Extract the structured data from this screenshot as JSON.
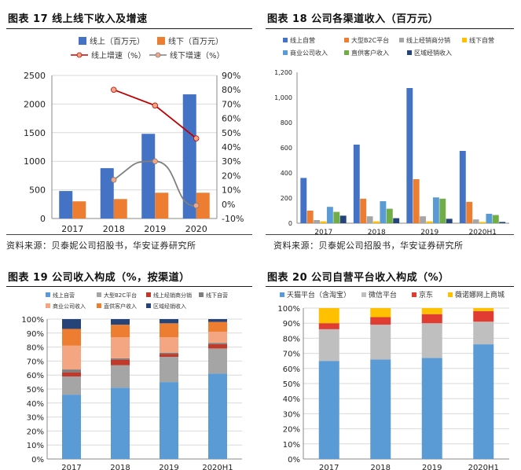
{
  "colors": {
    "blue": "#4472c4",
    "orange": "#ed7d31",
    "grey": "#a5a5a5",
    "yellow": "#ffc000",
    "lightblue": "#5b9bd5",
    "green": "#70ad47",
    "navy": "#264478",
    "red_line": "#c00000",
    "grey_line": "#7f7f7f",
    "pink": "#f4a582",
    "red": "#c0392b"
  },
  "panels": {
    "p17": {
      "title": "图表 17 线上线下收入及增速",
      "source": "资料来源：贝泰妮公司招股书，华安证券研究所"
    },
    "p18": {
      "title": "图表 18  公司各渠道收入（百万元）",
      "source": "资料来源：贝泰妮公司招股书，华安证券研究所"
    },
    "p19": {
      "title": "图表 19 公司收入构成（%，按渠道）"
    },
    "p20": {
      "title": "图表 20 公司自营平台收入构成（%）"
    }
  },
  "chart_data": [
    {
      "id": "c17",
      "type": "bar",
      "categories": [
        "2017",
        "2018",
        "2019",
        "2020"
      ],
      "series": [
        {
          "name": "线上（百万元）",
          "values": [
            480,
            880,
            1480,
            2170
          ],
          "color": "#4472c4"
        },
        {
          "name": "线下（百万元）",
          "values": [
            300,
            340,
            450,
            450
          ],
          "color": "#ed7d31"
        }
      ],
      "line_series": [
        {
          "name": "线上增速（%）",
          "values": [
            null,
            80,
            69,
            46
          ],
          "color": "#c00000"
        },
        {
          "name": "线下增速（%）",
          "values": [
            null,
            17,
            30,
            -1
          ],
          "color": "#7f7f7f"
        }
      ],
      "yticks": [
        "0",
        "500",
        "1000",
        "1500",
        "2000",
        "2500"
      ],
      "y2ticks": [
        "-10%",
        "0%",
        "10%",
        "20%",
        "30%",
        "40%",
        "50%",
        "60%",
        "70%",
        "80%",
        "90%"
      ],
      "ylim": [
        0,
        2500
      ],
      "y2lim": [
        -10,
        90
      ]
    },
    {
      "id": "c18",
      "type": "bar",
      "categories": [
        "2017",
        "2018",
        "2019",
        "2020H1"
      ],
      "series": [
        {
          "name": "线上自营",
          "values": [
            360,
            625,
            1075,
            575
          ],
          "color": "#4472c4"
        },
        {
          "name": "大型B2C平台",
          "values": [
            100,
            195,
            350,
            170
          ],
          "color": "#ed7d31"
        },
        {
          "name": "线上经销商分销",
          "values": [
            25,
            55,
            55,
            30
          ],
          "color": "#a5a5a5"
        },
        {
          "name": "线下自营",
          "values": [
            15,
            15,
            15,
            10
          ],
          "color": "#ffc000"
        },
        {
          "name": "商业公司收入",
          "values": [
            130,
            175,
            205,
            75
          ],
          "color": "#5b9bd5"
        },
        {
          "name": "直供客户收入",
          "values": [
            90,
            115,
            195,
            65
          ],
          "color": "#70ad47"
        },
        {
          "name": "区域经销收入",
          "values": [
            60,
            40,
            35,
            10
          ],
          "color": "#264478"
        }
      ],
      "yticks": [
        "0",
        "200",
        "400",
        "600",
        "800",
        "1,000",
        "1,200"
      ],
      "ylim": [
        0,
        1200
      ]
    },
    {
      "id": "c19",
      "type": "bar",
      "stacked": true,
      "categories": [
        "2017",
        "2018",
        "2019",
        "2020H1"
      ],
      "series": [
        {
          "name": "线上自营",
          "values": [
            46,
            51,
            55,
            61
          ],
          "color": "#5b9bd5"
        },
        {
          "name": "大型B2C平台",
          "values": [
            13,
            16,
            18,
            18
          ],
          "color": "#a5a5a5"
        },
        {
          "name": "线上经销商分销",
          "values": [
            3,
            4,
            2,
            3
          ],
          "color": "#c0392b"
        },
        {
          "name": "线下自营",
          "values": [
            2,
            1,
            1,
            1
          ],
          "color": "#7f7f7f"
        },
        {
          "name": "商业公司收入",
          "values": [
            17,
            15,
            11,
            8
          ],
          "color": "#f4a582"
        },
        {
          "name": "直供客户收入",
          "values": [
            12,
            9,
            10,
            7
          ],
          "color": "#ed7d31"
        },
        {
          "name": "区域经销收入",
          "values": [
            7,
            4,
            3,
            2
          ],
          "color": "#264478"
        }
      ],
      "yticks": [
        "0%",
        "10%",
        "20%",
        "30%",
        "40%",
        "50%",
        "60%",
        "70%",
        "80%",
        "90%",
        "100%"
      ],
      "ylim": [
        0,
        100
      ]
    },
    {
      "id": "c20",
      "type": "bar",
      "stacked": true,
      "categories": [
        "2017",
        "2018",
        "2019",
        "2020H1"
      ],
      "series": [
        {
          "name": "天猫平台（含淘宝）",
          "values": [
            65,
            66,
            67,
            76
          ],
          "color": "#5b9bd5"
        },
        {
          "name": "微信平台",
          "values": [
            21,
            23,
            23,
            15
          ],
          "color": "#bfbfbf"
        },
        {
          "name": "京东",
          "values": [
            4,
            5,
            6,
            7
          ],
          "color": "#e03c31"
        },
        {
          "name": "薇诺娜网上商城",
          "values": [
            10,
            6,
            4,
            2
          ],
          "color": "#ffc000"
        }
      ],
      "yticks": [
        "0%",
        "10%",
        "20%",
        "30%",
        "40%",
        "50%",
        "60%",
        "70%",
        "80%",
        "90%",
        "100%"
      ],
      "ylim": [
        0,
        100
      ]
    }
  ]
}
